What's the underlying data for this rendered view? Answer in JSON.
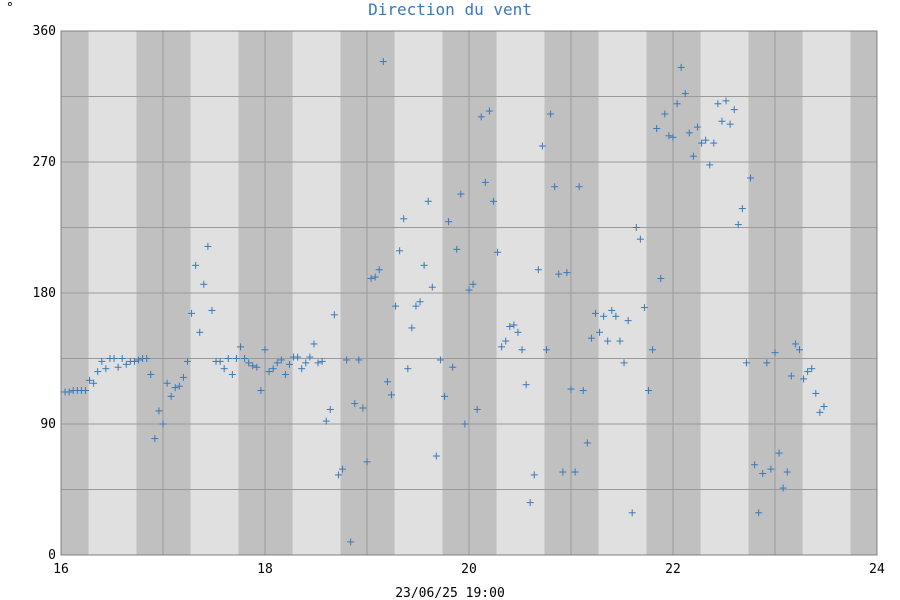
{
  "chart_data": {
    "type": "scatter",
    "title": "Direction du vent",
    "unit_label": "°",
    "footer": "23/06/25 19:00",
    "x_ticks": [
      "16",
      "18",
      "20",
      "22",
      "24"
    ],
    "y_ticks": [
      "0",
      "90",
      "180",
      "270",
      "360"
    ],
    "xlim": [
      16,
      24
    ],
    "ylim": [
      0,
      360
    ],
    "grid": true,
    "colors": {
      "marker": "#3a78b8",
      "band_dark": "#c0c0c0",
      "band_light": "#e0e0e0",
      "grid": "#9a9a9a",
      "title": "#3a78b8"
    },
    "series": [
      {
        "points": [
          [
            16.04,
            112
          ],
          [
            16.08,
            112
          ],
          [
            16.12,
            113
          ],
          [
            16.16,
            113
          ],
          [
            16.2,
            113
          ],
          [
            16.24,
            113
          ],
          [
            16.28,
            120
          ],
          [
            16.32,
            118
          ],
          [
            16.36,
            126
          ],
          [
            16.4,
            133
          ],
          [
            16.44,
            128
          ],
          [
            16.48,
            135
          ],
          [
            16.52,
            135
          ],
          [
            16.56,
            129
          ],
          [
            16.6,
            135
          ],
          [
            16.64,
            131
          ],
          [
            16.68,
            133
          ],
          [
            16.72,
            133
          ],
          [
            16.76,
            134
          ],
          [
            16.8,
            135
          ],
          [
            16.84,
            135
          ],
          [
            16.88,
            124
          ],
          [
            16.92,
            80
          ],
          [
            16.96,
            99
          ],
          [
            17.0,
            90
          ],
          [
            17.04,
            118
          ],
          [
            17.08,
            109
          ],
          [
            17.12,
            115
          ],
          [
            17.16,
            116
          ],
          [
            17.2,
            122
          ],
          [
            17.24,
            133
          ],
          [
            17.28,
            166
          ],
          [
            17.32,
            199
          ],
          [
            17.36,
            153
          ],
          [
            17.4,
            186
          ],
          [
            17.44,
            212
          ],
          [
            17.48,
            168
          ],
          [
            17.52,
            133
          ],
          [
            17.56,
            133
          ],
          [
            17.6,
            128
          ],
          [
            17.64,
            135
          ],
          [
            17.68,
            124
          ],
          [
            17.72,
            135
          ],
          [
            17.76,
            143
          ],
          [
            17.8,
            135
          ],
          [
            17.84,
            132
          ],
          [
            17.88,
            130
          ],
          [
            17.92,
            129
          ],
          [
            17.96,
            113
          ],
          [
            18.0,
            141
          ],
          [
            18.04,
            126
          ],
          [
            18.08,
            128
          ],
          [
            18.12,
            132
          ],
          [
            18.16,
            134
          ],
          [
            18.2,
            124
          ],
          [
            18.24,
            131
          ],
          [
            18.28,
            136
          ],
          [
            18.32,
            136
          ],
          [
            18.36,
            128
          ],
          [
            18.4,
            132
          ],
          [
            18.44,
            136
          ],
          [
            18.48,
            145
          ],
          [
            18.52,
            132
          ],
          [
            18.56,
            133
          ],
          [
            18.6,
            92
          ],
          [
            18.64,
            100
          ],
          [
            18.68,
            165
          ],
          [
            18.72,
            55
          ],
          [
            18.76,
            59
          ],
          [
            18.8,
            134
          ],
          [
            18.84,
            9
          ],
          [
            18.88,
            104
          ],
          [
            18.92,
            134
          ],
          [
            18.96,
            101
          ],
          [
            19.0,
            64
          ],
          [
            19.04,
            190
          ],
          [
            19.08,
            191
          ],
          [
            19.12,
            196
          ],
          [
            19.16,
            339
          ],
          [
            19.2,
            119
          ],
          [
            19.24,
            110
          ],
          [
            19.28,
            171
          ],
          [
            19.32,
            209
          ],
          [
            19.36,
            231
          ],
          [
            19.4,
            128
          ],
          [
            19.44,
            156
          ],
          [
            19.48,
            171
          ],
          [
            19.52,
            174
          ],
          [
            19.56,
            199
          ],
          [
            19.6,
            243
          ],
          [
            19.64,
            184
          ],
          [
            19.68,
            68
          ],
          [
            19.72,
            134
          ],
          [
            19.76,
            109
          ],
          [
            19.8,
            229
          ],
          [
            19.84,
            129
          ],
          [
            19.88,
            210
          ],
          [
            19.92,
            248
          ],
          [
            19.96,
            90
          ],
          [
            20.0,
            182
          ],
          [
            20.04,
            186
          ],
          [
            20.08,
            100
          ],
          [
            20.12,
            301
          ],
          [
            20.16,
            256
          ],
          [
            20.2,
            305
          ],
          [
            20.24,
            243
          ],
          [
            20.28,
            208
          ],
          [
            20.32,
            143
          ],
          [
            20.36,
            147
          ],
          [
            20.4,
            157
          ],
          [
            20.44,
            158
          ],
          [
            20.48,
            153
          ],
          [
            20.52,
            141
          ],
          [
            20.56,
            117
          ],
          [
            20.6,
            36
          ],
          [
            20.64,
            55
          ],
          [
            20.68,
            196
          ],
          [
            20.72,
            281
          ],
          [
            20.76,
            141
          ],
          [
            20.8,
            303
          ],
          [
            20.84,
            253
          ],
          [
            20.88,
            193
          ],
          [
            20.92,
            57
          ],
          [
            20.96,
            194
          ],
          [
            21.0,
            114
          ],
          [
            21.04,
            57
          ],
          [
            21.08,
            253
          ],
          [
            21.12,
            113
          ],
          [
            21.16,
            77
          ],
          [
            21.2,
            149
          ],
          [
            21.24,
            166
          ],
          [
            21.28,
            153
          ],
          [
            21.32,
            164
          ],
          [
            21.36,
            147
          ],
          [
            21.4,
            168
          ],
          [
            21.44,
            164
          ],
          [
            21.48,
            147
          ],
          [
            21.52,
            132
          ],
          [
            21.56,
            161
          ],
          [
            21.6,
            29
          ],
          [
            21.64,
            225
          ],
          [
            21.68,
            217
          ],
          [
            21.72,
            170
          ],
          [
            21.76,
            113
          ],
          [
            21.8,
            141
          ],
          [
            21.84,
            293
          ],
          [
            21.88,
            190
          ],
          [
            21.92,
            303
          ],
          [
            21.96,
            288
          ],
          [
            22.0,
            287
          ],
          [
            22.04,
            310
          ],
          [
            22.08,
            335
          ],
          [
            22.12,
            317
          ],
          [
            22.16,
            290
          ],
          [
            22.2,
            274
          ],
          [
            22.24,
            294
          ],
          [
            22.28,
            283
          ],
          [
            22.32,
            285
          ],
          [
            22.36,
            268
          ],
          [
            22.4,
            283
          ],
          [
            22.44,
            310
          ],
          [
            22.48,
            298
          ],
          [
            22.52,
            312
          ],
          [
            22.56,
            296
          ],
          [
            22.6,
            306
          ],
          [
            22.64,
            227
          ],
          [
            22.68,
            238
          ],
          [
            22.72,
            132
          ],
          [
            22.76,
            259
          ],
          [
            22.8,
            62
          ],
          [
            22.84,
            29
          ],
          [
            22.88,
            56
          ],
          [
            22.92,
            132
          ],
          [
            22.96,
            59
          ],
          [
            23.0,
            139
          ],
          [
            23.04,
            70
          ],
          [
            23.08,
            46
          ],
          [
            23.12,
            57
          ],
          [
            23.16,
            123
          ],
          [
            23.2,
            145
          ],
          [
            23.24,
            141
          ],
          [
            23.28,
            121
          ],
          [
            23.32,
            126
          ],
          [
            23.36,
            128
          ],
          [
            23.4,
            111
          ],
          [
            23.44,
            98
          ],
          [
            23.48,
            102
          ]
        ]
      }
    ]
  }
}
